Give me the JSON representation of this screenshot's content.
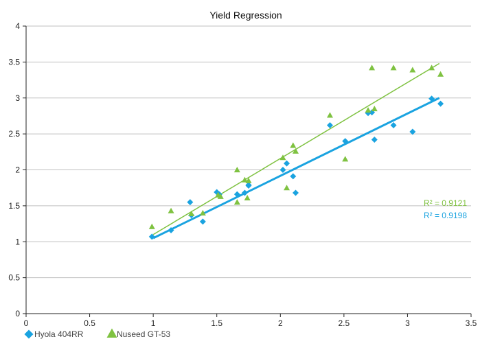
{
  "chart_data": {
    "type": "scatter",
    "title": "Yield Regression",
    "xlabel": "",
    "ylabel": "",
    "xlim": [
      0,
      3.5
    ],
    "ylim": [
      0,
      4
    ],
    "x_ticks": [
      "0",
      "0.5",
      "1",
      "1.5",
      "2",
      "2.5",
      "3",
      "3.5"
    ],
    "y_ticks": [
      "0",
      "0.5",
      "1",
      "1.5",
      "2",
      "2.5",
      "3",
      "3.5",
      "4"
    ],
    "grid": "horizontal",
    "legend_position": "bottom-left",
    "series": [
      {
        "name": "Hyola 404RR",
        "color": "#1aa3e0",
        "marker": "diamond",
        "r2_label": "R² = 0.9198",
        "trendline": {
          "x": [
            1.0,
            3.25
          ],
          "y": [
            1.05,
            3.0
          ]
        },
        "points": [
          [
            0.99,
            1.07
          ],
          [
            1.14,
            1.16
          ],
          [
            1.29,
            1.55
          ],
          [
            1.3,
            1.37
          ],
          [
            1.39,
            1.28
          ],
          [
            1.5,
            1.69
          ],
          [
            1.52,
            1.66
          ],
          [
            1.66,
            1.66
          ],
          [
            1.72,
            1.68
          ],
          [
            1.75,
            1.79
          ],
          [
            1.75,
            1.78
          ],
          [
            2.02,
            2.0
          ],
          [
            2.05,
            2.09
          ],
          [
            2.1,
            1.91
          ],
          [
            2.12,
            1.68
          ],
          [
            2.39,
            2.62
          ],
          [
            2.51,
            2.4
          ],
          [
            2.69,
            2.79
          ],
          [
            2.72,
            2.8
          ],
          [
            2.74,
            2.42
          ],
          [
            2.89,
            2.62
          ],
          [
            3.04,
            2.53
          ],
          [
            3.19,
            2.99
          ],
          [
            3.26,
            2.92
          ]
        ]
      },
      {
        "name": "Nuseed GT-53",
        "color": "#7fc241",
        "marker": "triangle",
        "r2_label": "R² = 0.9121",
        "trendline": {
          "x": [
            1.0,
            3.25
          ],
          "y": [
            1.1,
            3.48
          ]
        },
        "points": [
          [
            0.99,
            1.21
          ],
          [
            1.14,
            1.43
          ],
          [
            1.3,
            1.39
          ],
          [
            1.39,
            1.4
          ],
          [
            1.51,
            1.65
          ],
          [
            1.53,
            1.63
          ],
          [
            1.66,
            2.0
          ],
          [
            1.66,
            1.55
          ],
          [
            1.72,
            1.86
          ],
          [
            1.74,
            1.61
          ],
          [
            1.75,
            1.85
          ],
          [
            2.02,
            2.17
          ],
          [
            2.05,
            1.75
          ],
          [
            2.1,
            2.34
          ],
          [
            2.12,
            2.26
          ],
          [
            2.39,
            2.76
          ],
          [
            2.51,
            2.15
          ],
          [
            2.69,
            2.83
          ],
          [
            2.72,
            3.42
          ],
          [
            2.74,
            2.85
          ],
          [
            2.89,
            3.42
          ],
          [
            3.04,
            3.39
          ],
          [
            3.19,
            3.42
          ],
          [
            3.26,
            3.33
          ]
        ]
      }
    ]
  }
}
